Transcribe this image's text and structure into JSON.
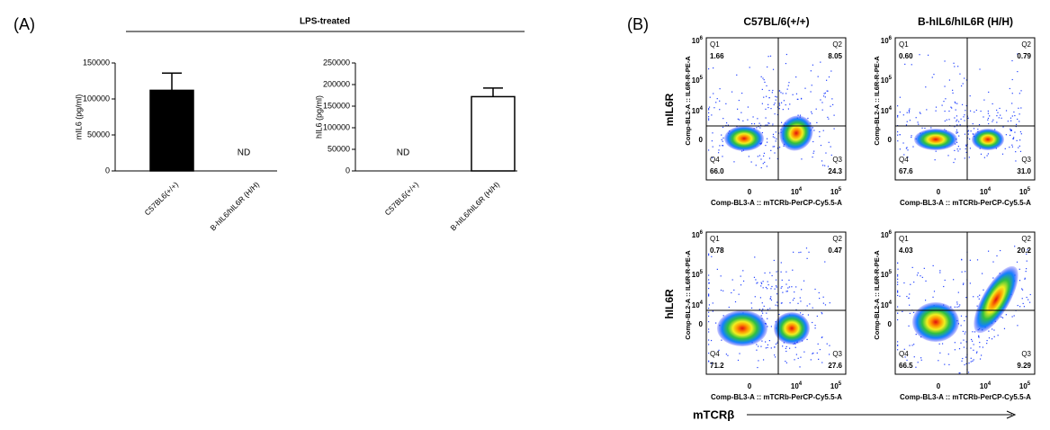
{
  "chart_data": [
    {
      "type": "bar",
      "categories": [
        "C57BL6(+/+)",
        "B-hIL6/hIL6R (H/H)"
      ],
      "values": [
        112000,
        null
      ],
      "errors": [
        24000,
        null
      ],
      "value_labels": [
        null,
        "ND"
      ],
      "color": "#000000",
      "edgecolor": "#000000",
      "ylabel": "mIL6 (pg/ml)",
      "ylim": [
        0,
        150000
      ],
      "yticks": [
        0,
        50000,
        100000,
        150000
      ]
    },
    {
      "type": "bar",
      "categories": [
        "C57BL6(+/+)",
        "B-hIL6/hIL6R (H/H)"
      ],
      "values": [
        null,
        172000
      ],
      "errors": [
        null,
        20000
      ],
      "value_labels": [
        "ND",
        null
      ],
      "color": "#ffffff",
      "edgecolor": "#000000",
      "ylabel": "hIL6 (pg/ml)",
      "ylim": [
        0,
        250000
      ],
      "yticks": [
        0,
        50000,
        100000,
        150000,
        200000,
        250000
      ]
    }
  ],
  "panel_a": {
    "label": "(A)",
    "group_title": "LPS-treated"
  },
  "panel_b": {
    "label": "(B)",
    "columns": [
      "C57BL/6(+/+)",
      "B-hIL6/hIL6R (H/H)"
    ],
    "rows": [
      "mIL6R",
      "hIL6R"
    ],
    "x_axis_label": "Comp-BL3-A :: mTCRb-PerCP-Cy5.5-A",
    "y_axis_label": "Comp-BL2-A :: IL6R-R-PE-A",
    "x_tick_labels": [
      [
        "0"
      ],
      [
        "10",
        "4"
      ],
      [
        "10",
        "5"
      ]
    ],
    "y_tick_labels": [
      [
        "10",
        "6"
      ],
      [
        "10",
        "5"
      ],
      [
        "10",
        "4"
      ],
      [
        "0"
      ]
    ],
    "quadrants": [
      "Q1",
      "Q2",
      "Q3",
      "Q4"
    ],
    "panels": [
      [
        "1.66",
        "8.05",
        "24.3",
        "66.0"
      ],
      [
        "0.60",
        "0.79",
        "31.0",
        "67.6"
      ],
      [
        "0.78",
        "0.47",
        "27.6",
        "71.2"
      ],
      [
        "4.03",
        "20.2",
        "9.29",
        "66.5"
      ]
    ],
    "arrow_label": "mTCRβ"
  }
}
